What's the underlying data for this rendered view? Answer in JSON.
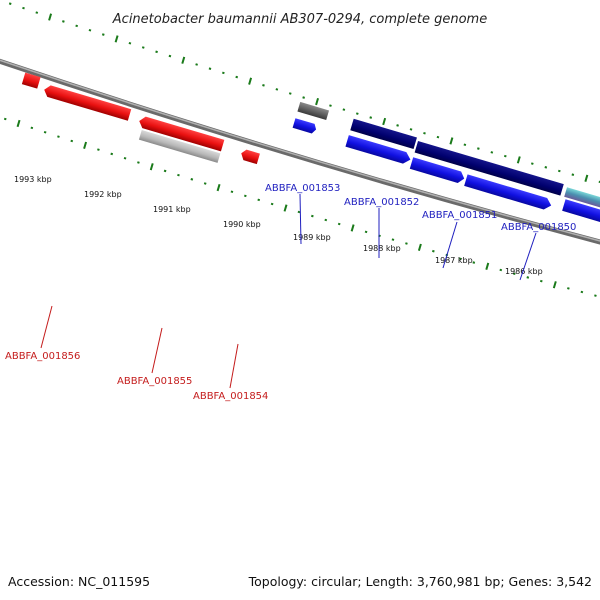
{
  "title": "Acinetobacter baumannii AB307-0294, complete genome",
  "footer": {
    "accession": "Accession: NC_011595",
    "summary": "Topology: circular; Length: 3,760,981 bp; Genes: 3,542"
  },
  "ticks": [
    "1993 kbp",
    "1992 kbp",
    "1991 kbp",
    "1990 kbp",
    "1989 kbp",
    "1988 kbp",
    "1987 kbp",
    "1986 kbp"
  ],
  "genes_forward": [
    "ABBFA_001853",
    "ABBFA_001852",
    "ABBFA_001851",
    "ABBFA_001850"
  ],
  "genes_reverse": [
    "ABBFA_001856",
    "ABBFA_001855",
    "ABBFA_001854"
  ],
  "colors": {
    "forward_label": "#1f1fbf",
    "reverse_label": "#c41c1c",
    "forward_gene": "#1010e0",
    "forward_cds": "#00006e",
    "reverse_gene": "#e81010",
    "pseudo_gene": "#b8b8b8",
    "tick": "#1a7a1a",
    "backbone": "#808080"
  }
}
